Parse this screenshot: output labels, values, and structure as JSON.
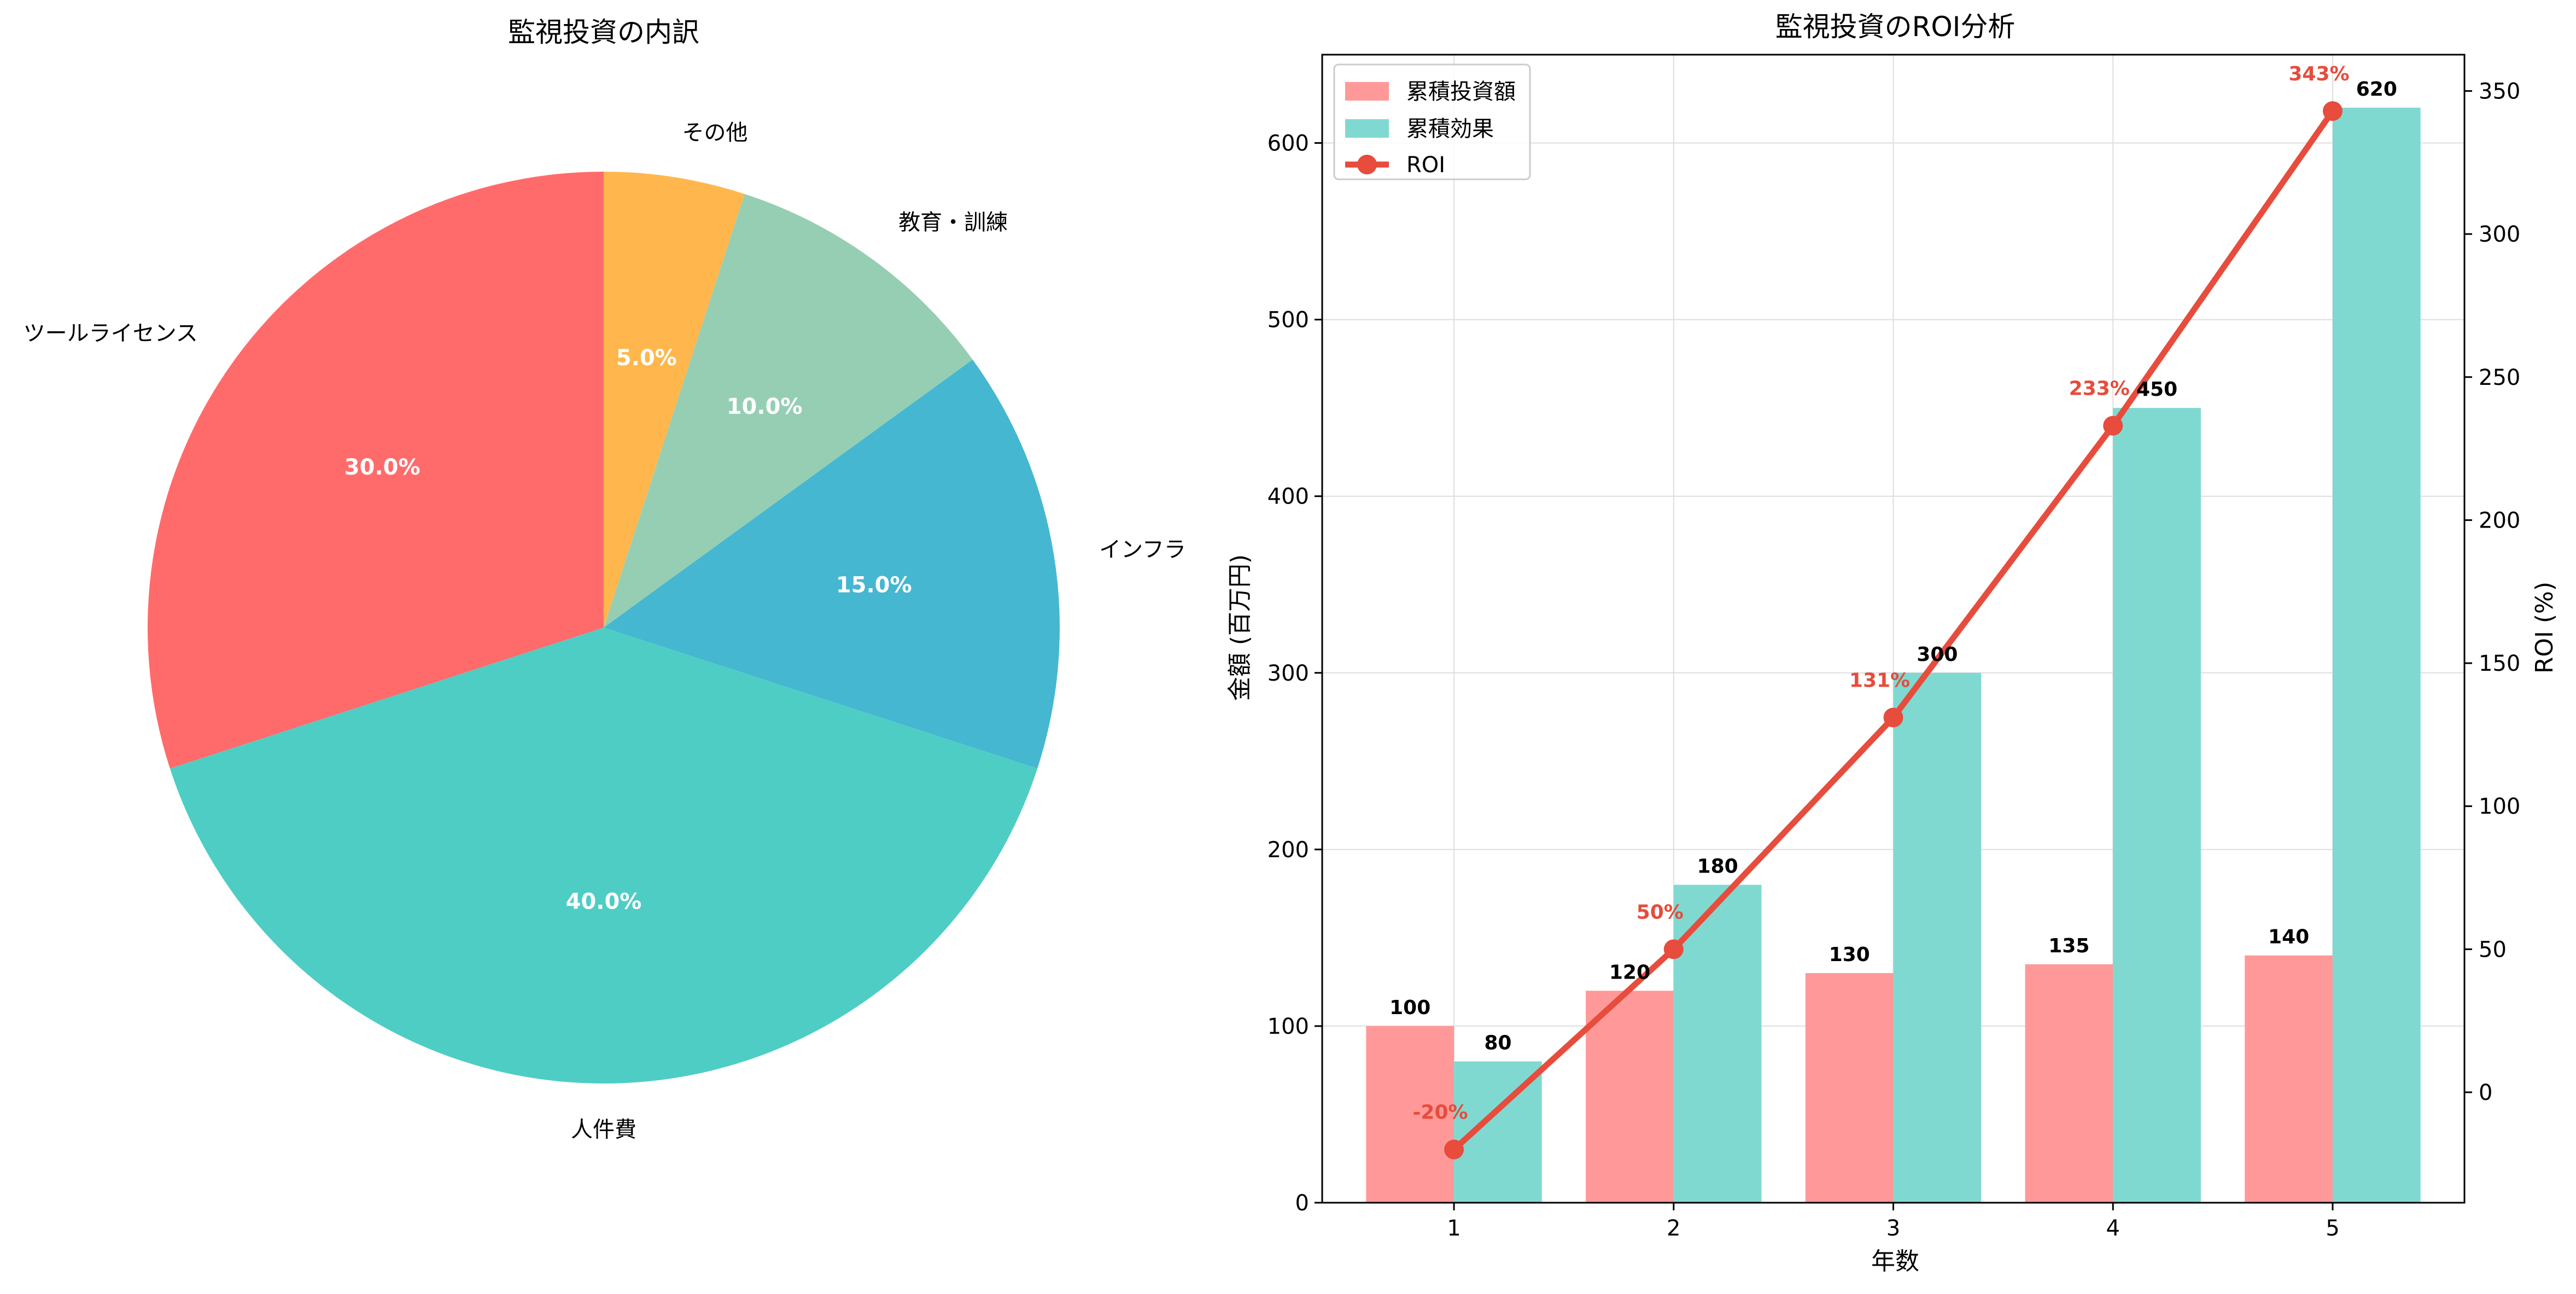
{
  "colors": {
    "investment": "#ff9999",
    "effect": "#80d9d1",
    "roi": "#e74c3c",
    "pie_tools": "#ff6b6b",
    "pie_people": "#4ecdc4",
    "pie_infra": "#45b7d1",
    "pie_education": "#96ceb4",
    "pie_other": "#ffb74d",
    "axis": "#000000",
    "grid": "#dedede"
  },
  "chart_data": [
    {
      "type": "pie",
      "title": "監視投資の内訳",
      "slices": [
        {
          "label": "その他",
          "value": 5.0,
          "pct_label": "5.0%",
          "color": "#ffb74d"
        },
        {
          "label": "教育・訓練",
          "value": 10.0,
          "pct_label": "10.0%",
          "color": "#96ceb4"
        },
        {
          "label": "インフラ",
          "value": 15.0,
          "pct_label": "15.0%",
          "color": "#45b7d1"
        },
        {
          "label": "人件費",
          "value": 40.0,
          "pct_label": "40.0%",
          "color": "#4ecdc4"
        },
        {
          "label": "ツールライセンス",
          "value": 30.0,
          "pct_label": "30.0%",
          "color": "#ff6b6b"
        }
      ],
      "start_angle_deg": 90,
      "direction": "clockwise"
    },
    {
      "type": "bar",
      "title": "監視投資のROI分析",
      "xlabel": "年数",
      "ylabel": "金額 (百万円)",
      "y2label": "ROI (%)",
      "categories": [
        "1",
        "2",
        "3",
        "4",
        "5"
      ],
      "ylim": [
        0,
        650
      ],
      "yticks": [
        0,
        100,
        200,
        300,
        400,
        500,
        600
      ],
      "y2lim": [
        -38.6,
        362.7
      ],
      "y2ticks": [
        0,
        50,
        100,
        150,
        200,
        250,
        300,
        350
      ],
      "grid": true,
      "legend_position": "top-left",
      "series": [
        {
          "name": "累積投資額",
          "kind": "bar",
          "values": [
            100,
            120,
            130,
            135,
            140
          ],
          "labels": [
            "100",
            "120",
            "130",
            "135",
            "140"
          ],
          "color": "#ff9999"
        },
        {
          "name": "累積効果",
          "kind": "bar",
          "values": [
            80,
            180,
            300,
            450,
            620
          ],
          "labels": [
            "80",
            "180",
            "300",
            "450",
            "620"
          ],
          "color": "#80d9d1"
        },
        {
          "name": "ROI",
          "kind": "line",
          "axis": "right",
          "values": [
            -20,
            50,
            131,
            233,
            343
          ],
          "labels": [
            "-20%",
            "50%",
            "131%",
            "233%",
            "343%"
          ],
          "color": "#e74c3c"
        }
      ]
    }
  ]
}
